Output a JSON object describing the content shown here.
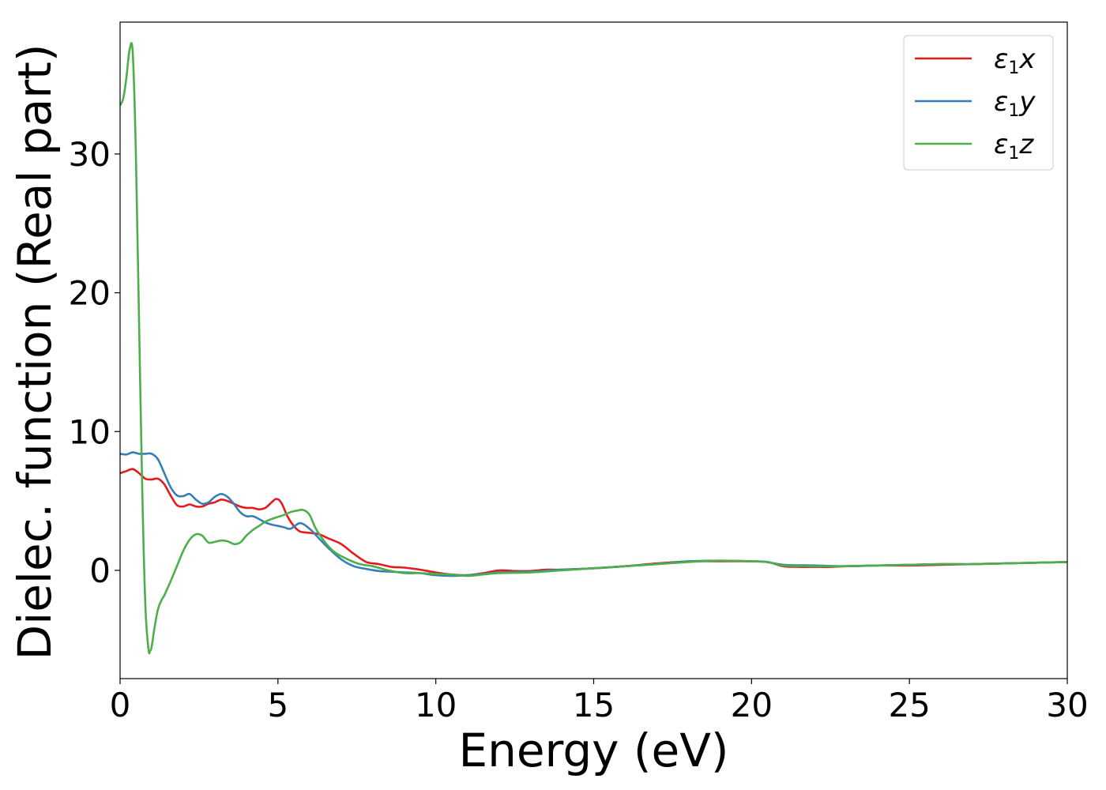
{
  "chart_data": {
    "type": "line",
    "title": "",
    "xlabel": "Energy (eV)",
    "ylabel": "Dielec. function (Real part)",
    "xlim": [
      0,
      30
    ],
    "ylim": [
      -7.8,
      39.5
    ],
    "xticks": [
      0,
      5,
      10,
      15,
      20,
      25,
      30
    ],
    "yticks": [
      0,
      10,
      20,
      30
    ],
    "grid": false,
    "legend_position": "top-right",
    "series": [
      {
        "name": "ε1x",
        "label_main": "ε",
        "label_sub": "1",
        "label_suffix": "x",
        "color": "#e41a1c",
        "x": [
          0,
          0.2,
          0.4,
          0.6,
          0.8,
          1.0,
          1.2,
          1.4,
          1.6,
          1.8,
          2.0,
          2.2,
          2.4,
          2.6,
          2.8,
          3.0,
          3.2,
          3.4,
          3.6,
          3.8,
          4.0,
          4.2,
          4.4,
          4.6,
          4.8,
          4.95,
          5.1,
          5.3,
          5.5,
          5.7,
          6.0,
          6.3,
          6.6,
          7.0,
          7.4,
          7.8,
          8.2,
          8.6,
          9.0,
          9.5,
          10.0,
          10.5,
          11.0,
          11.5,
          12.0,
          12.5,
          13.0,
          13.5,
          14.0,
          15.0,
          16.0,
          17.0,
          18.0,
          19.0,
          20.0,
          20.5,
          21.0,
          21.5,
          22.0,
          22.5,
          23.0,
          24.0,
          25.0,
          26.0,
          27.0,
          28.0,
          29.0,
          30.0
        ],
        "y": [
          7.0,
          7.15,
          7.3,
          7.0,
          6.6,
          6.55,
          6.6,
          6.2,
          5.4,
          4.7,
          4.6,
          4.75,
          4.6,
          4.6,
          4.8,
          4.9,
          5.1,
          5.0,
          4.8,
          4.6,
          4.5,
          4.5,
          4.4,
          4.5,
          4.9,
          5.15,
          4.9,
          3.9,
          3.2,
          2.8,
          2.7,
          2.6,
          2.3,
          1.9,
          1.2,
          0.6,
          0.45,
          0.25,
          0.2,
          0.05,
          -0.15,
          -0.3,
          -0.35,
          -0.2,
          0.0,
          -0.05,
          -0.05,
          0.05,
          0.05,
          0.15,
          0.3,
          0.5,
          0.65,
          0.65,
          0.65,
          0.6,
          0.3,
          0.25,
          0.25,
          0.25,
          0.3,
          0.35,
          0.35,
          0.4,
          0.45,
          0.5,
          0.55,
          0.6
        ]
      },
      {
        "name": "ε1y",
        "label_main": "ε",
        "label_sub": "1",
        "label_suffix": "y",
        "color": "#377eb8",
        "x": [
          0,
          0.2,
          0.4,
          0.6,
          0.8,
          1.0,
          1.2,
          1.4,
          1.6,
          1.8,
          2.0,
          2.2,
          2.4,
          2.6,
          2.8,
          3.0,
          3.2,
          3.4,
          3.6,
          3.8,
          4.0,
          4.2,
          4.4,
          4.6,
          4.8,
          5.0,
          5.2,
          5.4,
          5.7,
          6.0,
          6.3,
          6.6,
          7.0,
          7.4,
          7.8,
          8.2,
          8.6,
          9.0,
          9.5,
          10.0,
          10.5,
          11.0,
          11.5,
          12.0,
          13.0,
          14.0,
          15.0,
          16.0,
          17.0,
          18.0,
          19.0,
          20.0,
          20.5,
          21.0,
          22.0,
          23.0,
          24.0,
          25.0,
          26.0,
          27.0,
          28.0,
          29.0,
          30.0
        ],
        "y": [
          8.4,
          8.35,
          8.5,
          8.4,
          8.4,
          8.4,
          8.0,
          7.0,
          6.0,
          5.4,
          5.35,
          5.5,
          5.1,
          4.8,
          4.9,
          5.3,
          5.5,
          5.3,
          4.8,
          4.2,
          3.9,
          3.9,
          3.7,
          3.45,
          3.3,
          3.2,
          3.1,
          3.0,
          3.4,
          3.0,
          2.3,
          1.6,
          0.8,
          0.3,
          0.1,
          -0.05,
          -0.1,
          -0.15,
          -0.2,
          -0.35,
          -0.4,
          -0.35,
          -0.25,
          -0.15,
          -0.1,
          0.05,
          0.15,
          0.3,
          0.45,
          0.65,
          0.7,
          0.65,
          0.6,
          0.4,
          0.35,
          0.3,
          0.35,
          0.4,
          0.45,
          0.45,
          0.5,
          0.55,
          0.6
        ]
      },
      {
        "name": "ε1z",
        "label_main": "ε",
        "label_sub": "1",
        "label_suffix": "z",
        "color": "#4daf4a",
        "x": [
          0,
          0.1,
          0.2,
          0.3,
          0.4,
          0.5,
          0.6,
          0.7,
          0.8,
          0.9,
          0.95,
          1.0,
          1.1,
          1.2,
          1.3,
          1.4,
          1.5,
          1.6,
          1.8,
          2.0,
          2.2,
          2.4,
          2.6,
          2.8,
          3.0,
          3.2,
          3.4,
          3.6,
          3.8,
          4.0,
          4.2,
          4.4,
          4.6,
          4.8,
          5.0,
          5.2,
          5.4,
          5.6,
          5.8,
          6.0,
          6.2,
          6.5,
          6.8,
          7.2,
          7.6,
          8.0,
          8.5,
          9.0,
          9.5,
          10.0,
          10.5,
          11.0,
          11.5,
          12.0,
          13.0,
          14.0,
          15.0,
          16.0,
          17.0,
          18.0,
          19.0,
          20.0,
          20.5,
          21.0,
          22.0,
          23.0,
          24.0,
          25.0,
          26.0,
          27.0,
          28.0,
          29.0,
          30.0
        ],
        "y": [
          33.5,
          34.0,
          35.5,
          37.5,
          37.3,
          30.0,
          18.0,
          6.0,
          -2.5,
          -5.7,
          -5.8,
          -5.5,
          -4.0,
          -2.8,
          -2.2,
          -1.8,
          -1.3,
          -0.8,
          0.3,
          1.4,
          2.2,
          2.6,
          2.5,
          2.0,
          2.05,
          2.15,
          2.1,
          1.9,
          2.0,
          2.5,
          2.9,
          3.2,
          3.5,
          3.7,
          3.85,
          4.0,
          4.2,
          4.3,
          4.35,
          4.0,
          3.0,
          2.0,
          1.3,
          0.8,
          0.45,
          0.3,
          0.0,
          -0.2,
          -0.2,
          -0.25,
          -0.3,
          -0.4,
          -0.3,
          -0.2,
          -0.15,
          0.0,
          0.15,
          0.3,
          0.45,
          0.6,
          0.7,
          0.65,
          0.6,
          0.35,
          0.3,
          0.3,
          0.35,
          0.4,
          0.45,
          0.45,
          0.5,
          0.55,
          0.6
        ]
      }
    ]
  }
}
